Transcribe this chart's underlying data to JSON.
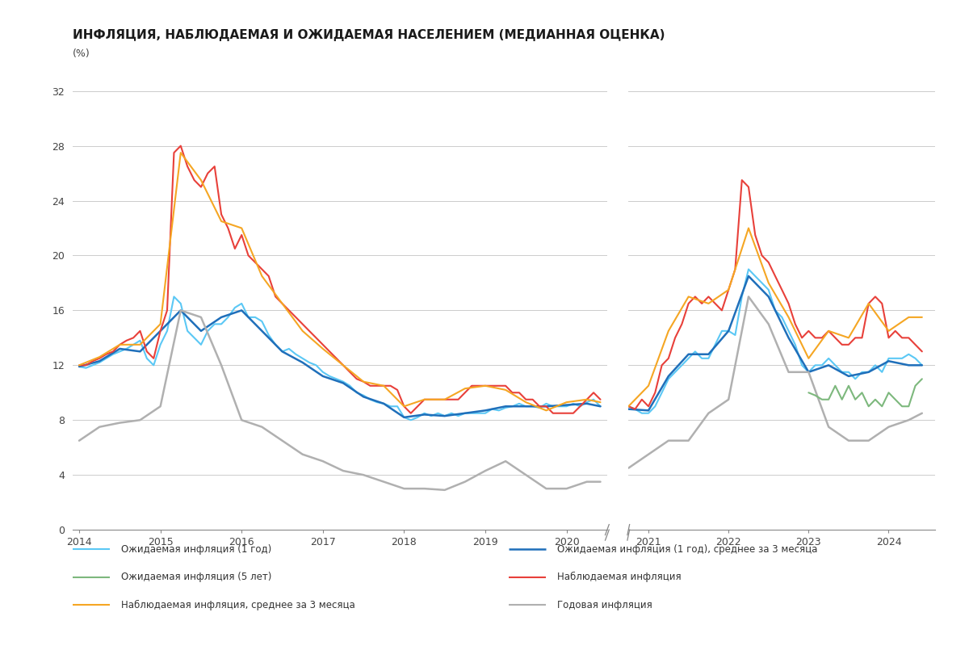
{
  "title": "ИНФЛЯЦИЯ, НАБЛЮДАЕМАЯ И ОЖИДАЕМАЯ НАСЕЛЕНИЕМ (МЕДИАННАЯ ОЦЕНКА)",
  "subtitle": "(%)",
  "background_color": "#ffffff",
  "ylim": [
    0,
    32
  ],
  "yticks": [
    0,
    4,
    8,
    12,
    16,
    20,
    24,
    28,
    32
  ],
  "legend_items": [
    {
      "label": "Ожидаемая инфляция (1 год)",
      "color": "#5bc8f5",
      "lw": 1.5
    },
    {
      "label": "Ожидаемая инфляция (1 год), среднее за 3 месяца",
      "color": "#1f6fba",
      "lw": 1.8
    },
    {
      "label": "Ожидаемая инфляция (5 лет)",
      "color": "#7db87d",
      "lw": 1.5
    },
    {
      "label": "Наблюдаемая инфляция",
      "color": "#e8403a",
      "lw": 1.5
    },
    {
      "label": "Наблюдаемая инфляция, среднее за 3 месяца",
      "color": "#f5a623",
      "lw": 1.5
    },
    {
      "label": "Годовая инфляция",
      "color": "#b0b0b0",
      "lw": 1.5
    }
  ],
  "series": {
    "exp_1y": {
      "color": "#5bc8f5",
      "lw": 1.5,
      "x": [
        2014.0,
        2014.083,
        2014.167,
        2014.25,
        2014.333,
        2014.417,
        2014.5,
        2014.583,
        2014.667,
        2014.75,
        2014.833,
        2014.917,
        2015.0,
        2015.083,
        2015.167,
        2015.25,
        2015.333,
        2015.417,
        2015.5,
        2015.583,
        2015.667,
        2015.75,
        2015.833,
        2015.917,
        2016.0,
        2016.083,
        2016.167,
        2016.25,
        2016.333,
        2016.417,
        2016.5,
        2016.583,
        2016.667,
        2016.75,
        2016.833,
        2016.917,
        2017.0,
        2017.083,
        2017.167,
        2017.25,
        2017.333,
        2017.417,
        2017.5,
        2017.583,
        2017.667,
        2017.75,
        2017.833,
        2017.917,
        2018.0,
        2018.083,
        2018.167,
        2018.25,
        2018.333,
        2018.417,
        2018.5,
        2018.583,
        2018.667,
        2018.75,
        2018.833,
        2018.917,
        2019.0,
        2019.083,
        2019.167,
        2019.25,
        2019.333,
        2019.417,
        2019.5,
        2019.583,
        2019.667,
        2019.75,
        2019.833,
        2019.917,
        2020.0,
        2020.083,
        2020.167,
        2020.25,
        2020.333,
        2020.417
      ],
      "y": [
        11.9,
        11.8,
        12.0,
        12.2,
        12.5,
        12.8,
        13.0,
        13.2,
        13.5,
        13.8,
        12.5,
        12.0,
        13.5,
        14.5,
        17.0,
        16.5,
        14.5,
        14.0,
        13.5,
        14.5,
        15.0,
        15.0,
        15.5,
        16.2,
        16.5,
        15.5,
        15.5,
        15.2,
        14.2,
        13.5,
        13.0,
        13.2,
        12.8,
        12.5,
        12.2,
        12.0,
        11.5,
        11.2,
        11.0,
        10.8,
        10.5,
        10.0,
        9.8,
        9.5,
        9.3,
        9.2,
        9.0,
        9.0,
        8.2,
        8.0,
        8.2,
        8.5,
        8.3,
        8.5,
        8.3,
        8.5,
        8.3,
        8.5,
        8.5,
        8.5,
        8.5,
        8.8,
        8.7,
        8.9,
        9.0,
        9.2,
        9.0,
        9.0,
        8.9,
        9.2,
        9.0,
        9.0,
        9.0,
        9.2,
        9.0,
        9.3,
        9.5,
        9.0
      ]
    },
    "exp_1y_r": {
      "color": "#5bc8f5",
      "lw": 1.5,
      "x": [
        2020.75,
        2020.833,
        2020.917,
        2021.0,
        2021.083,
        2021.167,
        2021.25,
        2021.333,
        2021.417,
        2021.5,
        2021.583,
        2021.667,
        2021.75,
        2021.833,
        2021.917,
        2022.0,
        2022.083,
        2022.167,
        2022.25,
        2022.333,
        2022.417,
        2022.5,
        2022.583,
        2022.667,
        2022.75,
        2022.833,
        2022.917,
        2023.0,
        2023.083,
        2023.167,
        2023.25,
        2023.333,
        2023.417,
        2023.5,
        2023.583,
        2023.667,
        2023.75,
        2023.833,
        2023.917,
        2024.0,
        2024.083,
        2024.167,
        2024.25,
        2024.333,
        2024.417
      ],
      "y": [
        9.0,
        8.8,
        8.5,
        8.5,
        9.0,
        10.0,
        11.0,
        11.5,
        12.0,
        12.5,
        13.0,
        12.5,
        12.5,
        13.5,
        14.5,
        14.5,
        14.2,
        17.0,
        19.0,
        18.5,
        18.0,
        17.5,
        16.0,
        15.5,
        14.5,
        13.5,
        12.0,
        11.5,
        12.0,
        12.0,
        12.5,
        12.0,
        11.5,
        11.5,
        11.0,
        11.5,
        11.5,
        12.0,
        11.5,
        12.5,
        12.5,
        12.5,
        12.8,
        12.5,
        12.0
      ]
    },
    "exp_1y_3m": {
      "color": "#1f6fba",
      "lw": 1.8,
      "x": [
        2014.0,
        2014.25,
        2014.5,
        2014.75,
        2015.0,
        2015.25,
        2015.5,
        2015.75,
        2016.0,
        2016.25,
        2016.5,
        2016.75,
        2017.0,
        2017.25,
        2017.5,
        2017.75,
        2018.0,
        2018.25,
        2018.5,
        2018.75,
        2019.0,
        2019.25,
        2019.5,
        2019.75,
        2020.0,
        2020.25,
        2020.417
      ],
      "y": [
        11.9,
        12.3,
        13.2,
        13.0,
        14.5,
        16.0,
        14.5,
        15.5,
        16.0,
        14.5,
        13.0,
        12.2,
        11.2,
        10.7,
        9.7,
        9.2,
        8.2,
        8.4,
        8.3,
        8.5,
        8.7,
        9.0,
        9.0,
        9.0,
        9.1,
        9.2,
        9.0
      ]
    },
    "exp_1y_3m_r": {
      "color": "#1f6fba",
      "lw": 1.8,
      "x": [
        2020.75,
        2021.0,
        2021.25,
        2021.5,
        2021.75,
        2022.0,
        2022.25,
        2022.5,
        2022.75,
        2023.0,
        2023.25,
        2023.5,
        2023.75,
        2024.0,
        2024.25,
        2024.417
      ],
      "y": [
        8.8,
        8.7,
        11.2,
        12.8,
        12.8,
        14.5,
        18.5,
        17.0,
        14.0,
        11.5,
        12.0,
        11.2,
        11.5,
        12.3,
        12.0,
        12.0
      ]
    },
    "exp_5y": {
      "color": "#7db87d",
      "lw": 1.5,
      "x": [
        2023.0,
        2023.083,
        2023.167,
        2023.25,
        2023.333,
        2023.417,
        2023.5,
        2023.583,
        2023.667,
        2023.75,
        2023.833,
        2023.917,
        2024.0,
        2024.083,
        2024.167,
        2024.25,
        2024.333,
        2024.417
      ],
      "y": [
        10.0,
        9.8,
        9.5,
        9.5,
        10.5,
        9.5,
        10.5,
        9.5,
        10.0,
        9.0,
        9.5,
        9.0,
        10.0,
        9.5,
        9.0,
        9.0,
        10.5,
        11.0
      ]
    },
    "obs": {
      "color": "#e8403a",
      "lw": 1.5,
      "x": [
        2014.0,
        2014.083,
        2014.167,
        2014.25,
        2014.333,
        2014.417,
        2014.5,
        2014.583,
        2014.667,
        2014.75,
        2014.833,
        2014.917,
        2015.0,
        2015.083,
        2015.167,
        2015.25,
        2015.333,
        2015.417,
        2015.5,
        2015.583,
        2015.667,
        2015.75,
        2015.833,
        2015.917,
        2016.0,
        2016.083,
        2016.167,
        2016.25,
        2016.333,
        2016.417,
        2016.5,
        2016.583,
        2016.667,
        2016.75,
        2016.833,
        2016.917,
        2017.0,
        2017.083,
        2017.167,
        2017.25,
        2017.333,
        2017.417,
        2017.5,
        2017.583,
        2017.667,
        2017.75,
        2017.833,
        2017.917,
        2018.0,
        2018.083,
        2018.167,
        2018.25,
        2018.333,
        2018.417,
        2018.5,
        2018.583,
        2018.667,
        2018.75,
        2018.833,
        2018.917,
        2019.0,
        2019.083,
        2019.167,
        2019.25,
        2019.333,
        2019.417,
        2019.5,
        2019.583,
        2019.667,
        2019.75,
        2019.833,
        2019.917,
        2020.0,
        2020.083,
        2020.167,
        2020.25,
        2020.333,
        2020.417
      ],
      "y": [
        12.0,
        12.0,
        12.3,
        12.5,
        12.8,
        13.0,
        13.5,
        13.8,
        14.0,
        14.5,
        13.0,
        12.5,
        14.5,
        16.0,
        27.5,
        28.0,
        26.5,
        25.5,
        25.0,
        26.0,
        26.5,
        23.0,
        22.0,
        20.5,
        21.5,
        20.0,
        19.5,
        19.0,
        18.5,
        17.0,
        16.5,
        16.0,
        15.5,
        15.0,
        14.5,
        14.0,
        13.5,
        13.0,
        12.5,
        12.0,
        11.5,
        11.0,
        10.8,
        10.5,
        10.5,
        10.5,
        10.5,
        10.2,
        9.0,
        8.5,
        9.0,
        9.5,
        9.5,
        9.5,
        9.5,
        9.5,
        9.5,
        10.0,
        10.5,
        10.5,
        10.5,
        10.5,
        10.5,
        10.5,
        10.0,
        10.0,
        9.5,
        9.5,
        9.0,
        9.0,
        8.5,
        8.5,
        8.5,
        8.5,
        9.0,
        9.5,
        10.0,
        9.5
      ]
    },
    "obs_r": {
      "color": "#e8403a",
      "lw": 1.5,
      "x": [
        2020.75,
        2020.833,
        2020.917,
        2021.0,
        2021.083,
        2021.167,
        2021.25,
        2021.333,
        2021.417,
        2021.5,
        2021.583,
        2021.667,
        2021.75,
        2021.833,
        2021.917,
        2022.0,
        2022.083,
        2022.167,
        2022.25,
        2022.333,
        2022.417,
        2022.5,
        2022.583,
        2022.667,
        2022.75,
        2022.833,
        2022.917,
        2023.0,
        2023.083,
        2023.167,
        2023.25,
        2023.333,
        2023.417,
        2023.5,
        2023.583,
        2023.667,
        2023.75,
        2023.833,
        2023.917,
        2024.0,
        2024.083,
        2024.167,
        2024.25,
        2024.333,
        2024.417
      ],
      "y": [
        9.0,
        8.8,
        9.5,
        9.0,
        10.0,
        12.0,
        12.5,
        14.0,
        15.0,
        16.5,
        17.0,
        16.5,
        17.0,
        16.5,
        16.0,
        17.5,
        19.0,
        25.5,
        25.0,
        21.5,
        20.0,
        19.5,
        18.5,
        17.5,
        16.5,
        15.0,
        14.0,
        14.5,
        14.0,
        14.0,
        14.5,
        14.0,
        13.5,
        13.5,
        14.0,
        14.0,
        16.5,
        17.0,
        16.5,
        14.0,
        14.5,
        14.0,
        14.0,
        13.5,
        13.0
      ]
    },
    "obs_3m": {
      "color": "#f5a623",
      "lw": 1.5,
      "x": [
        2014.0,
        2014.25,
        2014.5,
        2014.75,
        2015.0,
        2015.25,
        2015.5,
        2015.75,
        2016.0,
        2016.25,
        2016.5,
        2016.75,
        2017.0,
        2017.25,
        2017.5,
        2017.75,
        2018.0,
        2018.25,
        2018.5,
        2018.75,
        2019.0,
        2019.25,
        2019.5,
        2019.75,
        2020.0,
        2020.25,
        2020.417
      ],
      "y": [
        12.0,
        12.6,
        13.5,
        13.5,
        15.0,
        27.5,
        25.5,
        22.5,
        22.0,
        18.5,
        16.5,
        14.5,
        13.2,
        12.0,
        10.8,
        10.5,
        9.0,
        9.5,
        9.5,
        10.3,
        10.5,
        10.2,
        9.3,
        8.7,
        9.3,
        9.5,
        9.3
      ]
    },
    "obs_3m_r": {
      "color": "#f5a623",
      "lw": 1.5,
      "x": [
        2020.75,
        2021.0,
        2021.25,
        2021.5,
        2021.75,
        2022.0,
        2022.25,
        2022.5,
        2022.75,
        2023.0,
        2023.25,
        2023.5,
        2023.75,
        2024.0,
        2024.25,
        2024.417
      ],
      "y": [
        9.0,
        10.5,
        14.5,
        17.0,
        16.5,
        17.5,
        22.0,
        18.0,
        15.5,
        12.5,
        14.5,
        14.0,
        16.5,
        14.5,
        15.5,
        15.5
      ]
    },
    "annual": {
      "color": "#b0b0b0",
      "lw": 1.8,
      "x": [
        2014.0,
        2014.25,
        2014.5,
        2014.75,
        2015.0,
        2015.25,
        2015.5,
        2015.75,
        2016.0,
        2016.25,
        2016.5,
        2016.75,
        2017.0,
        2017.25,
        2017.5,
        2017.75,
        2018.0,
        2018.25,
        2018.5,
        2018.75,
        2019.0,
        2019.25,
        2019.5,
        2019.75,
        2020.0,
        2020.25,
        2020.417
      ],
      "y": [
        6.5,
        7.5,
        7.8,
        8.0,
        9.0,
        16.0,
        15.5,
        12.0,
        8.0,
        7.5,
        6.5,
        5.5,
        5.0,
        4.3,
        4.0,
        3.5,
        3.0,
        3.0,
        2.9,
        3.5,
        4.3,
        5.0,
        4.0,
        3.0,
        3.0,
        3.5,
        3.5
      ]
    },
    "annual_r": {
      "color": "#b0b0b0",
      "lw": 1.8,
      "x": [
        2020.75,
        2021.0,
        2021.25,
        2021.5,
        2021.75,
        2022.0,
        2022.25,
        2022.5,
        2022.75,
        2023.0,
        2023.25,
        2023.5,
        2023.75,
        2024.0,
        2024.25,
        2024.417
      ],
      "y": [
        4.5,
        5.5,
        6.5,
        6.5,
        8.5,
        9.5,
        17.0,
        15.0,
        11.5,
        11.5,
        7.5,
        6.5,
        6.5,
        7.5,
        8.0,
        8.5
      ]
    }
  }
}
